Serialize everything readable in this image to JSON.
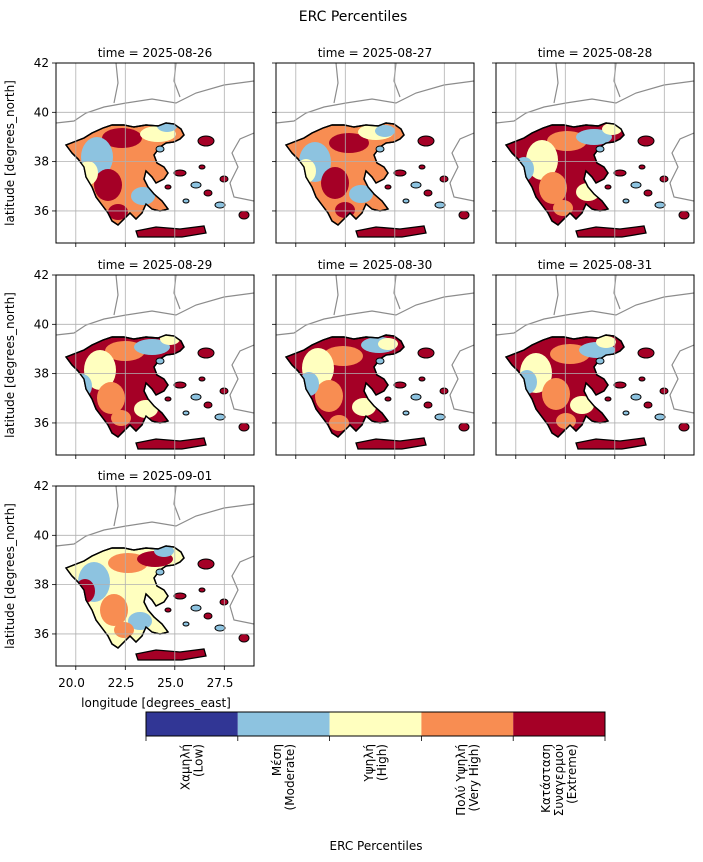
{
  "figure": {
    "title": "ERC Percentiles"
  },
  "axes": {
    "ylabel": "latitude [degrees_north]",
    "xlabel": "longitude [degrees_east]",
    "yticks": [
      36,
      38,
      40,
      42
    ],
    "xticks": [
      "20.0",
      "22.5",
      "25.0",
      "27.5"
    ]
  },
  "colorbar": {
    "label": "ERC Percentiles",
    "categories": [
      {
        "line1": "Χαμηλή",
        "line2": "(Low)",
        "line3": "",
        "color": "#313695"
      },
      {
        "line1": "Μέση",
        "line2": "(Moderate)",
        "line3": "",
        "color": "#8dc3e0"
      },
      {
        "line1": "Υψηλή",
        "line2": "(High)",
        "line3": "",
        "color": "#ffffbf"
      },
      {
        "line1": "Πολύ Υψηλή",
        "line2": "(Very High)",
        "line3": "",
        "color": "#f88d52"
      },
      {
        "line1": "Κατάσταση",
        "line2": "Συναγερμού",
        "line3": "(Extreme)",
        "color": "#a50026"
      }
    ]
  },
  "chart_data": {
    "type": "heatmap",
    "title": "ERC Percentiles",
    "xlabel": "longitude [degrees_east]",
    "ylabel": "latitude [degrees_north]",
    "xlim": [
      19.0,
      29.0
    ],
    "ylim": [
      34.7,
      42.0
    ],
    "grid": true,
    "colorbar_label": "ERC Percentiles",
    "panels": [
      {
        "title": "time = 2025-08-26",
        "dominant": [
          "Very High",
          "Extreme",
          "Moderate",
          "High"
        ]
      },
      {
        "title": "time = 2025-08-27",
        "dominant": [
          "Very High",
          "Extreme",
          "Moderate",
          "High"
        ]
      },
      {
        "title": "time = 2025-08-28",
        "dominant": [
          "Extreme",
          "Very High",
          "High",
          "Moderate"
        ]
      },
      {
        "title": "time = 2025-08-29",
        "dominant": [
          "Extreme",
          "Very High",
          "High",
          "Moderate"
        ]
      },
      {
        "title": "time = 2025-08-30",
        "dominant": [
          "Extreme",
          "Very High",
          "High",
          "Moderate"
        ]
      },
      {
        "title": "time = 2025-08-31",
        "dominant": [
          "Extreme",
          "Very High",
          "High",
          "Moderate"
        ]
      },
      {
        "title": "time = 2025-09-01",
        "dominant": [
          "High",
          "Very High",
          "Moderate",
          "Extreme"
        ]
      }
    ]
  }
}
